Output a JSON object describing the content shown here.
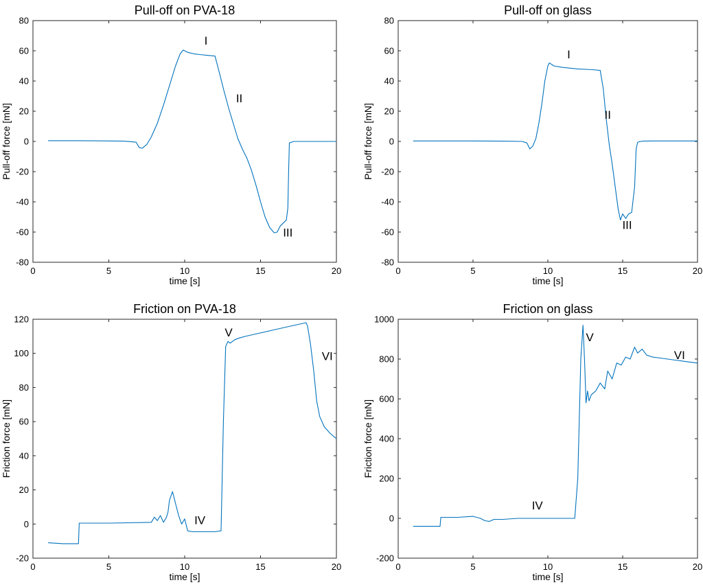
{
  "colors": {
    "series": "#0072bd",
    "axis": "#262626",
    "background": "#ffffff"
  },
  "chart_data": [
    {
      "type": "line",
      "title": "Pull-off on PVA-18",
      "xlabel": "time [s]",
      "ylabel": "Pull-off force [mN]",
      "xlim": [
        0,
        20
      ],
      "ylim": [
        -80,
        80
      ],
      "xticks": [
        0,
        5,
        10,
        15,
        20
      ],
      "yticks": [
        -80,
        -60,
        -40,
        -20,
        0,
        20,
        40,
        60,
        80
      ],
      "series": [
        {
          "name": "Pull-off force",
          "x": [
            1,
            2,
            3,
            4,
            5,
            6,
            6.8,
            7.0,
            7.2,
            7.5,
            7.8,
            8.2,
            8.6,
            9.0,
            9.4,
            9.7,
            9.9,
            10.2,
            10.6,
            11.0,
            11.5,
            12.0,
            12.3,
            12.6,
            12.9,
            13.2,
            13.5,
            13.8,
            14.1,
            14.4,
            14.7,
            15.0,
            15.3,
            15.6,
            15.9,
            16.1,
            16.3,
            16.5,
            16.7,
            16.8,
            16.85,
            16.9,
            17.2,
            18,
            19,
            20
          ],
          "y": [
            0.5,
            0.5,
            0.5,
            0.4,
            0.3,
            0.2,
            -0.5,
            -4,
            -4.5,
            -2,
            3,
            12,
            24,
            37,
            50,
            58,
            60.5,
            59,
            58,
            57.5,
            57,
            56.5,
            45,
            33,
            22,
            12,
            2,
            -5,
            -11,
            -19,
            -29,
            -40,
            -50,
            -57,
            -60.5,
            -60,
            -56,
            -54,
            -52,
            -44,
            -20,
            -1,
            0,
            0,
            0,
            0
          ]
        }
      ],
      "annotations": [
        {
          "text": "I",
          "x": 11.4,
          "y": 64
        },
        {
          "text": "II",
          "x": 13.6,
          "y": 26
        },
        {
          "text": "III",
          "x": 16.8,
          "y": -63
        }
      ]
    },
    {
      "type": "line",
      "title": "Pull-off on glass",
      "xlabel": "time [s]",
      "ylabel": "Pull-off force [mN]",
      "xlim": [
        0,
        20
      ],
      "ylim": [
        -80,
        80
      ],
      "xticks": [
        0,
        5,
        10,
        15,
        20
      ],
      "yticks": [
        -80,
        -60,
        -40,
        -20,
        0,
        20,
        40,
        60,
        80
      ],
      "series": [
        {
          "name": "Pull-off force",
          "x": [
            1,
            3,
            5,
            7,
            8.3,
            8.6,
            8.8,
            9.0,
            9.2,
            9.4,
            9.6,
            9.8,
            10.0,
            10.1,
            10.4,
            11,
            12,
            13,
            13.5,
            13.7,
            13.9,
            14.1,
            14.3,
            14.5,
            14.7,
            14.85,
            15.0,
            15.2,
            15.4,
            15.6,
            15.8,
            15.9,
            16.0,
            16.3,
            17,
            18,
            19,
            20
          ],
          "y": [
            0.3,
            0.3,
            0.3,
            0.2,
            0,
            -1,
            -5,
            -3,
            2,
            12,
            25,
            40,
            50,
            52,
            50,
            49,
            48,
            47.5,
            47,
            35,
            15,
            -2,
            -15,
            -30,
            -45,
            -52,
            -48,
            -51,
            -48,
            -47,
            -30,
            -5,
            -0.5,
            0.2,
            0.3,
            0.3,
            0.3,
            0.3
          ]
        }
      ],
      "annotations": [
        {
          "text": "I",
          "x": 11.4,
          "y": 55
        },
        {
          "text": "II",
          "x": 14.0,
          "y": 15
        },
        {
          "text": "III",
          "x": 15.3,
          "y": -58
        }
      ]
    },
    {
      "type": "line",
      "title": "Friction on PVA-18",
      "xlabel": "time [s]",
      "ylabel": "Friction force [mN]",
      "xlim": [
        0,
        20
      ],
      "ylim": [
        -20,
        120
      ],
      "xticks": [
        0,
        5,
        10,
        15,
        20
      ],
      "yticks": [
        -20,
        0,
        20,
        40,
        60,
        80,
        100,
        120
      ],
      "series": [
        {
          "name": "Friction force",
          "x": [
            1,
            2,
            3.0,
            3.05,
            3.2,
            5,
            7.8,
            8.0,
            8.2,
            8.4,
            8.6,
            8.8,
            8.9,
            9.0,
            9.2,
            9.4,
            9.6,
            9.8,
            10.0,
            10.2,
            10.5,
            11,
            12,
            12.4,
            12.55,
            12.7,
            12.85,
            13.0,
            13.3,
            13.6,
            14,
            15,
            16,
            17,
            17.5,
            18.0,
            18.1,
            18.3,
            18.5,
            18.7,
            18.9,
            19.2,
            19.6,
            20
          ],
          "y": [
            -11,
            -11.5,
            -11.5,
            0.5,
            0.5,
            0.5,
            1,
            4,
            2,
            5,
            1,
            4,
            7,
            14,
            19,
            12,
            5,
            0,
            3,
            -4,
            -4.5,
            -4.5,
            -4.5,
            -4,
            60,
            104,
            107,
            106,
            108,
            109,
            110,
            112,
            114,
            116,
            117,
            118,
            116,
            105,
            90,
            72,
            63,
            57,
            53,
            50
          ]
        }
      ],
      "annotations": [
        {
          "text": "V",
          "x": 12.9,
          "y": 110
        },
        {
          "text": "VI",
          "x": 19.4,
          "y": 96
        },
        {
          "text": "IV",
          "x": 11.0,
          "y": 0
        }
      ]
    },
    {
      "type": "line",
      "title": "Friction on glass",
      "xlabel": "time [s]",
      "ylabel": "Friction force [mN]",
      "xlim": [
        0,
        20
      ],
      "ylim": [
        -200,
        1000
      ],
      "xticks": [
        0,
        5,
        10,
        15,
        20
      ],
      "yticks": [
        -200,
        0,
        200,
        400,
        600,
        800,
        1000
      ],
      "series": [
        {
          "name": "Friction force",
          "x": [
            1,
            2,
            2.8,
            2.85,
            3.0,
            4,
            5,
            5.5,
            5.8,
            6.1,
            6.4,
            7,
            8,
            9,
            10,
            11,
            11.8,
            12.0,
            12.2,
            12.35,
            12.45,
            12.55,
            12.65,
            12.75,
            12.9,
            13.2,
            13.5,
            13.8,
            14.0,
            14.3,
            14.6,
            14.9,
            15.2,
            15.5,
            15.8,
            16.0,
            16.3,
            16.6,
            17.0,
            17.5,
            18.0,
            18.5,
            19,
            19.5,
            20
          ],
          "y": [
            -40,
            -40,
            -40,
            5,
            5,
            5,
            10,
            0,
            -12,
            -15,
            -5,
            -5,
            0,
            0,
            0,
            0,
            0,
            200,
            800,
            970,
            800,
            580,
            640,
            590,
            620,
            640,
            680,
            650,
            740,
            700,
            780,
            770,
            810,
            800,
            860,
            830,
            850,
            820,
            810,
            805,
            800,
            795,
            790,
            785,
            780
          ]
        }
      ],
      "annotations": [
        {
          "text": "V",
          "x": 12.8,
          "y": 890
        },
        {
          "text": "VI",
          "x": 18.8,
          "y": 800
        },
        {
          "text": "IV",
          "x": 9.3,
          "y": 45
        }
      ]
    }
  ]
}
